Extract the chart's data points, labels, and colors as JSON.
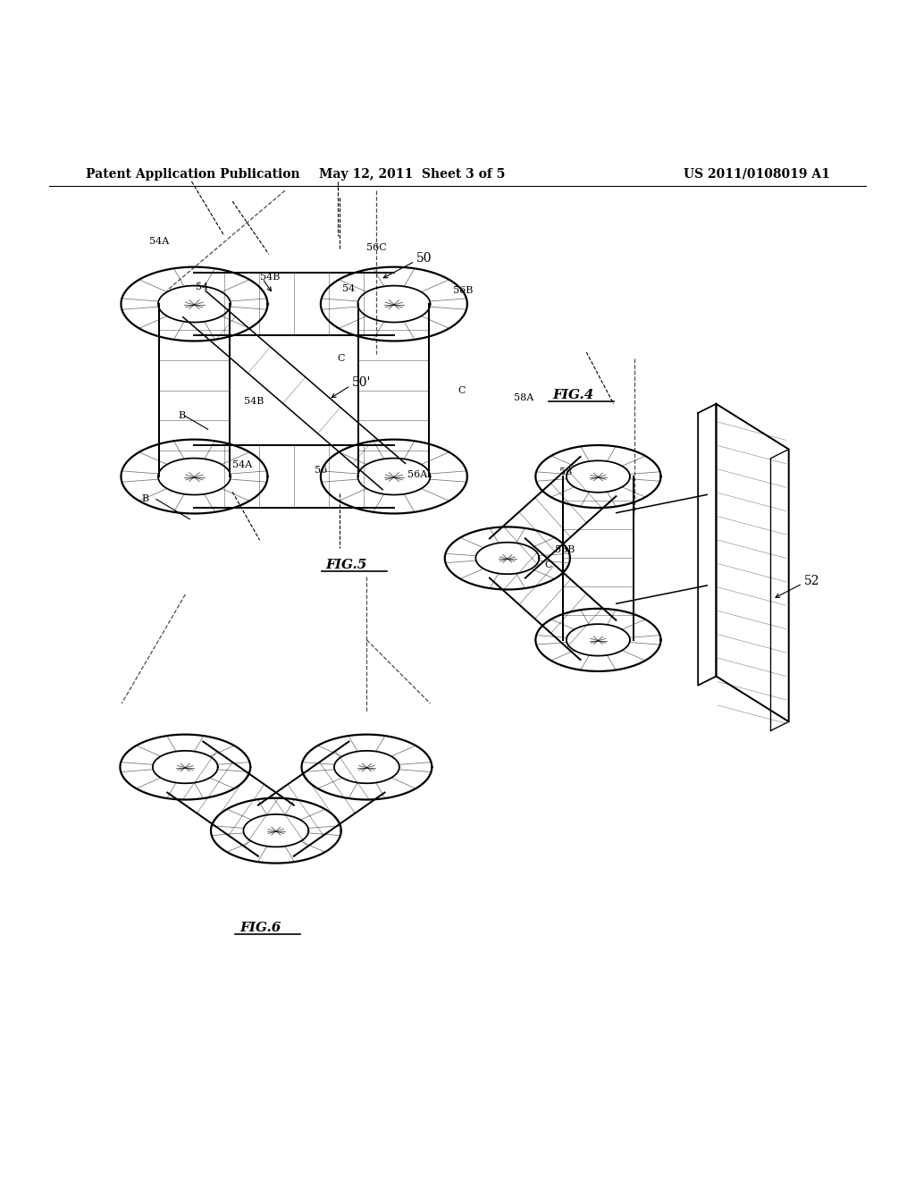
{
  "title_left": "Patent Application Publication",
  "title_mid": "May 12, 2011  Sheet 3 of 5",
  "title_right": "US 2011/0108019 A1",
  "bg_color": "#ffffff",
  "line_color": "#000000",
  "fig4_label": "FIG.4",
  "fig5_label": "FIG.5",
  "fig6_label": "FIG.6"
}
